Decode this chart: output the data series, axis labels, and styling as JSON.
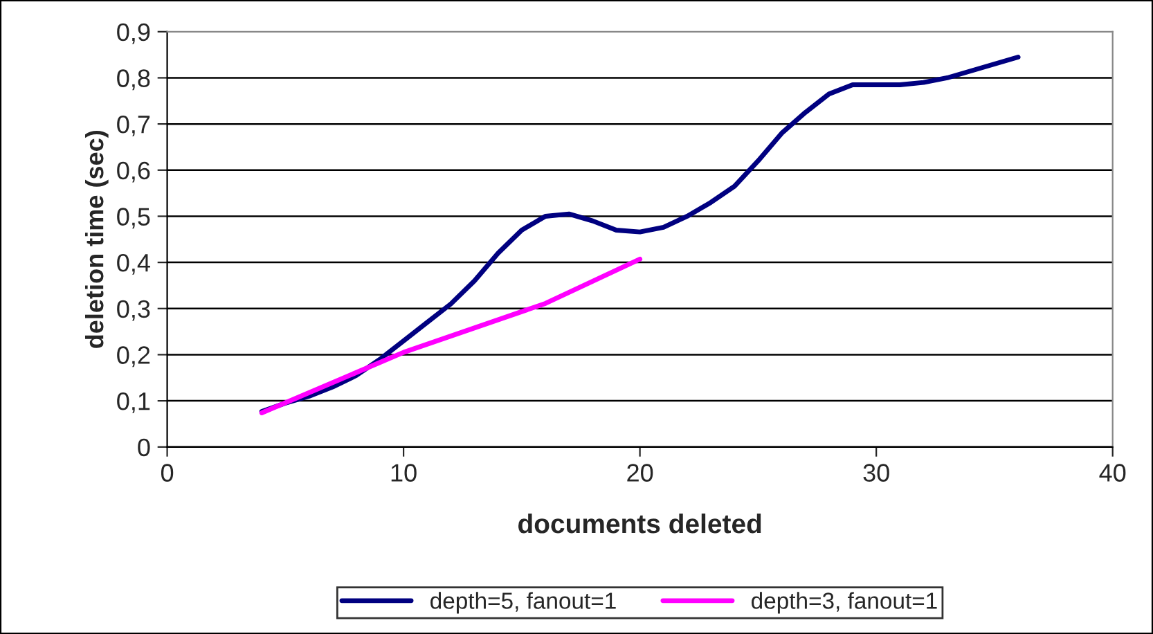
{
  "chart_data": {
    "type": "line",
    "xlabel": "documents deleted",
    "ylabel": "deletion time (sec)",
    "xlim": [
      0,
      40
    ],
    "xticks": [
      0,
      10,
      20,
      30,
      40
    ],
    "ylim": [
      0,
      0.9
    ],
    "yticks": [
      {
        "value": 0,
        "label": "0"
      },
      {
        "value": 0.1,
        "label": "0,1"
      },
      {
        "value": 0.2,
        "label": "0,2"
      },
      {
        "value": 0.3,
        "label": "0,3"
      },
      {
        "value": 0.4,
        "label": "0,4"
      },
      {
        "value": 0.5,
        "label": "0,5"
      },
      {
        "value": 0.6,
        "label": "0,6"
      },
      {
        "value": 0.7,
        "label": "0,7"
      },
      {
        "value": 0.8,
        "label": "0,8"
      },
      {
        "value": 0.9,
        "label": "0,9"
      }
    ],
    "grid": "y",
    "legend": "bottom",
    "marker": "none",
    "line_style": "solid",
    "series": [
      {
        "name": "depth=5, fanout=1",
        "color": "#000080",
        "x": [
          4,
          5,
          6,
          7,
          8,
          9,
          10,
          11,
          12,
          13,
          14,
          15,
          16,
          17,
          18,
          19,
          20,
          21,
          22,
          23,
          24,
          25,
          26,
          27,
          28,
          29,
          30,
          31,
          32,
          33,
          34,
          35,
          36
        ],
        "values": [
          0.077,
          0.095,
          0.11,
          0.13,
          0.155,
          0.19,
          0.23,
          0.27,
          0.31,
          0.36,
          0.42,
          0.47,
          0.5,
          0.505,
          0.49,
          0.47,
          0.466,
          0.476,
          0.5,
          0.53,
          0.565,
          0.62,
          0.68,
          0.725,
          0.765,
          0.785,
          0.785,
          0.785,
          0.79,
          0.8,
          0.815,
          0.83,
          0.845
        ]
      },
      {
        "name": "depth=3, fanout=1",
        "color": "#ff00ff",
        "x": [
          4,
          10,
          16,
          20
        ],
        "values": [
          0.074,
          0.205,
          0.311,
          0.407
        ]
      }
    ]
  }
}
